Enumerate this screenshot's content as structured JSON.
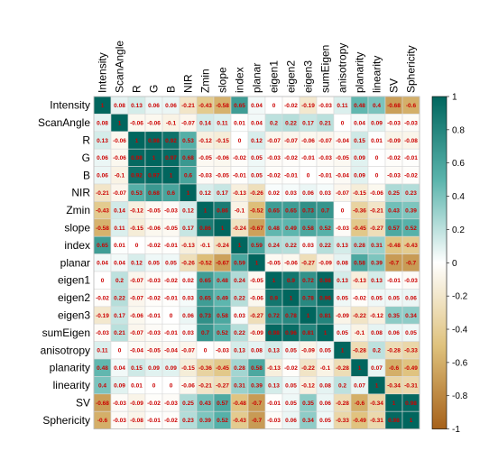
{
  "chart_data": {
    "type": "heatmap",
    "title": "",
    "xlabel": "",
    "ylabel": "",
    "variables": [
      "Intensity",
      "ScanAngle",
      "R",
      "G",
      "B",
      "NIR",
      "Zmin",
      "slope",
      "index",
      "planar",
      "eigen1",
      "eigen2",
      "eigen3",
      "sumEigen",
      "anisotropy",
      "planarity",
      "linearity",
      "SV",
      "Sphericity"
    ],
    "matrix": [
      [
        1,
        0.08,
        0.13,
        0.06,
        0.06,
        -0.21,
        -0.43,
        -0.58,
        0.65,
        0.04,
        0,
        -0.02,
        -0.19,
        -0.03,
        0.11,
        0.48,
        0.4,
        -0.68,
        -0.6
      ],
      [
        0.08,
        1,
        -0.06,
        -0.06,
        -0.1,
        -0.07,
        0.14,
        0.11,
        0.01,
        0.04,
        0.2,
        0.22,
        0.17,
        0.21,
        0,
        0.04,
        0.09,
        -0.03,
        -0.03
      ],
      [
        0.13,
        -0.06,
        1,
        0.98,
        0.92,
        0.53,
        -0.12,
        -0.15,
        0,
        0.12,
        -0.07,
        -0.07,
        -0.06,
        -0.07,
        -0.04,
        0.15,
        0.01,
        -0.09,
        -0.08
      ],
      [
        0.06,
        -0.06,
        0.98,
        1,
        0.97,
        0.68,
        -0.05,
        -0.06,
        -0.02,
        0.05,
        -0.03,
        -0.02,
        -0.01,
        -0.03,
        -0.05,
        0.09,
        0,
        -0.02,
        -0.01
      ],
      [
        0.06,
        -0.1,
        0.92,
        0.97,
        1,
        0.6,
        -0.03,
        -0.05,
        -0.01,
        0.05,
        -0.02,
        -0.01,
        0,
        -0.01,
        -0.04,
        0.09,
        0,
        -0.03,
        -0.02
      ],
      [
        -0.21,
        -0.07,
        0.53,
        0.68,
        0.6,
        1,
        0.12,
        0.17,
        -0.13,
        -0.26,
        0.02,
        0.03,
        0.06,
        0.03,
        -0.07,
        -0.15,
        -0.06,
        0.25,
        0.23
      ],
      [
        -0.43,
        0.14,
        -0.12,
        -0.05,
        -0.03,
        0.12,
        1,
        0.86,
        -0.1,
        -0.52,
        0.65,
        0.65,
        0.73,
        0.7,
        0,
        -0.36,
        -0.21,
        0.43,
        0.39
      ],
      [
        -0.58,
        0.11,
        -0.15,
        -0.06,
        -0.05,
        0.17,
        0.86,
        1,
        -0.24,
        -0.67,
        0.48,
        0.49,
        0.58,
        0.52,
        -0.03,
        -0.45,
        -0.27,
        0.57,
        0.52
      ],
      [
        0.65,
        0.01,
        0,
        -0.02,
        -0.01,
        -0.13,
        -0.1,
        -0.24,
        1,
        0.59,
        0.24,
        0.22,
        0.03,
        0.22,
        0.13,
        0.28,
        0.31,
        -0.48,
        -0.43
      ],
      [
        0.04,
        0.04,
        0.12,
        0.05,
        0.05,
        -0.26,
        -0.52,
        -0.67,
        0.59,
        1,
        -0.05,
        -0.06,
        -0.27,
        -0.09,
        0.08,
        0.58,
        0.39,
        -0.7,
        -0.7
      ],
      [
        0,
        0.2,
        -0.07,
        -0.03,
        -0.02,
        0.02,
        0.65,
        0.48,
        0.24,
        -0.05,
        1,
        0.9,
        0.72,
        0.98,
        0.13,
        -0.13,
        0.13,
        -0.01,
        -0.03
      ],
      [
        -0.02,
        0.22,
        -0.07,
        -0.02,
        -0.01,
        0.03,
        0.65,
        0.49,
        0.22,
        -0.06,
        0.9,
        1,
        0.78,
        0.96,
        0.05,
        -0.02,
        0.05,
        0.05,
        0.06
      ],
      [
        -0.19,
        0.17,
        -0.06,
        -0.01,
        0,
        0.06,
        0.73,
        0.58,
        0.03,
        -0.27,
        0.72,
        0.78,
        1,
        0.81,
        -0.09,
        -0.22,
        -0.12,
        0.35,
        0.34
      ],
      [
        -0.03,
        0.21,
        -0.07,
        -0.03,
        -0.01,
        0.03,
        0.7,
        0.52,
        0.22,
        -0.09,
        0.98,
        0.96,
        0.81,
        1,
        0.05,
        -0.1,
        0.08,
        0.06,
        0.05
      ],
      [
        0.11,
        0,
        -0.04,
        -0.05,
        -0.04,
        -0.07,
        0,
        -0.03,
        0.13,
        0.08,
        0.13,
        0.05,
        -0.09,
        0.05,
        1,
        -0.28,
        0.2,
        -0.28,
        -0.33
      ],
      [
        0.48,
        0.04,
        0.15,
        0.09,
        0.09,
        -0.15,
        -0.36,
        -0.45,
        0.28,
        0.58,
        -0.13,
        -0.02,
        -0.22,
        -0.1,
        -0.28,
        1,
        0.07,
        -0.6,
        -0.49
      ],
      [
        0.4,
        0.09,
        0.01,
        0,
        0,
        -0.06,
        -0.21,
        -0.27,
        0.31,
        0.39,
        0.13,
        0.05,
        -0.12,
        0.08,
        0.2,
        0.07,
        1,
        -0.34,
        -0.31
      ],
      [
        -0.68,
        -0.03,
        -0.09,
        -0.02,
        -0.03,
        0.25,
        0.43,
        0.57,
        -0.48,
        -0.7,
        -0.01,
        0.05,
        0.35,
        0.06,
        -0.28,
        -0.6,
        -0.34,
        1,
        0.98
      ],
      [
        -0.6,
        -0.03,
        -0.08,
        -0.01,
        -0.02,
        0.23,
        0.39,
        0.52,
        -0.43,
        -0.7,
        -0.03,
        0.06,
        0.34,
        0.05,
        -0.33,
        -0.49,
        -0.31,
        0.98,
        1
      ]
    ],
    "value_range": [
      -1,
      1
    ],
    "legend": {
      "position": "right",
      "ticks": [
        1,
        0.8,
        0.6,
        0.4,
        0.2,
        0,
        -0.2,
        -0.4,
        -0.6,
        -0.8,
        -1
      ],
      "tick_labels": [
        "1",
        "0.8",
        "0.6",
        "0.4",
        "0.2",
        "0",
        "-0.2",
        "-0.4",
        "-0.6",
        "-0.8",
        "-1"
      ]
    },
    "colors": {
      "positive": "#01665e",
      "neutral": "#ffffff",
      "negative": "#a6611a",
      "value_text": "#cc0000",
      "grid": "#d9d9d9"
    },
    "grid": true
  }
}
